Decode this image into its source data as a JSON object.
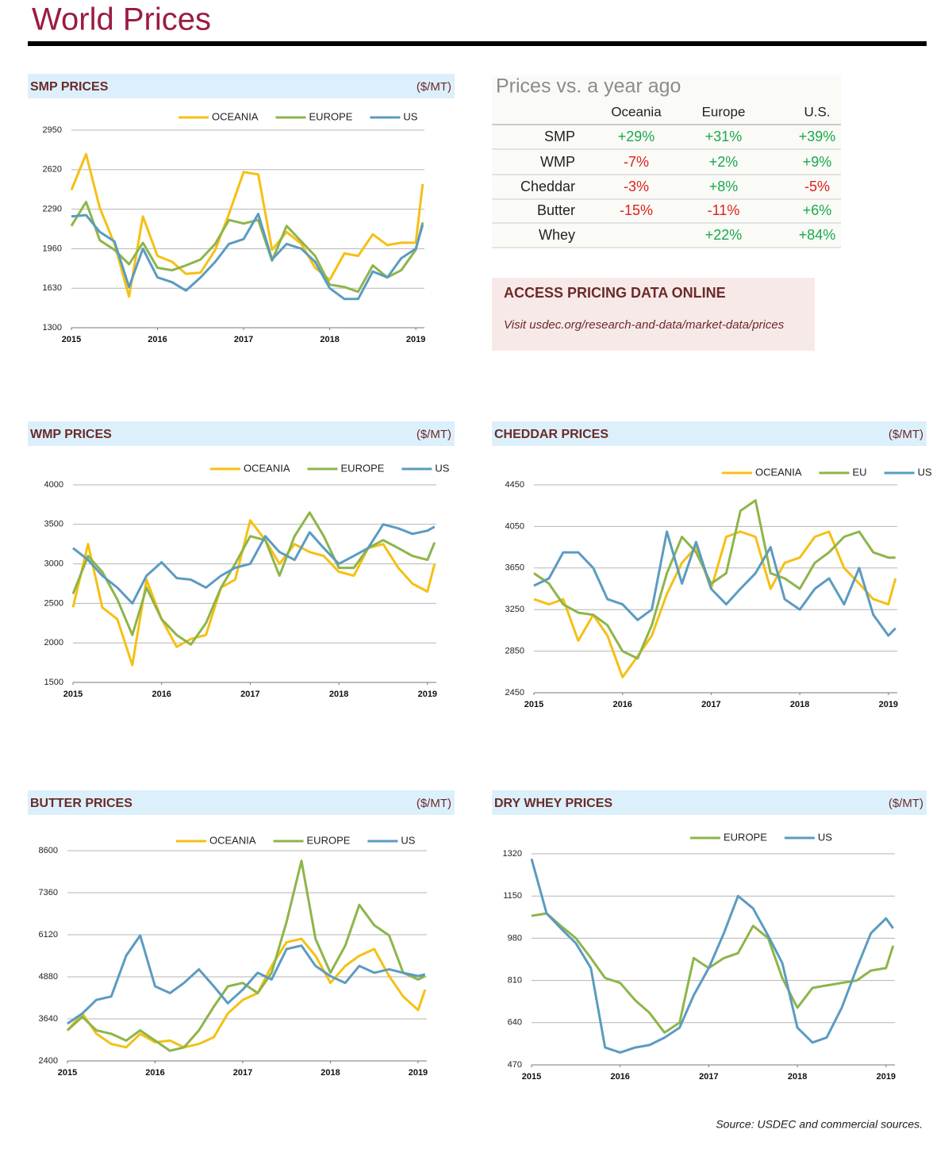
{
  "header": {
    "title": "World Prices"
  },
  "table": {
    "title": "Prices vs. a year ago",
    "columns": [
      "Oceania",
      "Europe",
      "U.S."
    ],
    "rows": [
      {
        "label": "SMP",
        "values": [
          "+29%",
          "+31%",
          "+39%"
        ]
      },
      {
        "label": "WMP",
        "values": [
          "-7%",
          "+2%",
          "+9%"
        ]
      },
      {
        "label": "Cheddar",
        "values": [
          "-3%",
          "+8%",
          "-5%"
        ]
      },
      {
        "label": "Butter",
        "values": [
          "-15%",
          "-11%",
          "+6%"
        ]
      },
      {
        "label": "Whey",
        "values": [
          null,
          "+22%",
          "+84%"
        ]
      }
    ]
  },
  "access": {
    "title": "ACCESS PRICING DATA ONLINE",
    "text": "Visit usdec.org/research-and-data/market-data/prices"
  },
  "source": "Source: USDEC and commercial sources.",
  "chart_data": [
    {
      "type": "line",
      "title": "SMP PRICES",
      "unit": "($/MT)",
      "x": [
        2015,
        2015.17,
        2015.33,
        2015.5,
        2015.67,
        2015.83,
        2016,
        2016.17,
        2016.33,
        2016.5,
        2016.67,
        2016.83,
        2017,
        2017.17,
        2017.33,
        2017.5,
        2017.67,
        2017.83,
        2018,
        2018.17,
        2018.33,
        2018.5,
        2018.67,
        2018.83,
        2019,
        2019.08
      ],
      "xlim": [
        2015,
        2019.1
      ],
      "xticks": [
        2015,
        2016,
        2017,
        2018,
        2019
      ],
      "ylim": [
        1300,
        2950
      ],
      "yticks": [
        1300,
        1630,
        1960,
        2290,
        2620,
        2950
      ],
      "grid": true,
      "series": [
        {
          "name": "OCEANIA",
          "color": "#f5c014",
          "values": [
            2450,
            2750,
            2300,
            2000,
            1560,
            2230,
            1900,
            1850,
            1750,
            1760,
            1950,
            2250,
            2600,
            2580,
            1950,
            2100,
            2000,
            1800,
            1700,
            1920,
            1900,
            2080,
            1990,
            2010,
            2010,
            2500
          ]
        },
        {
          "name": "EUROPE",
          "color": "#8db54a",
          "values": [
            2150,
            2350,
            2030,
            1950,
            1830,
            2010,
            1800,
            1780,
            1820,
            1870,
            2000,
            2200,
            2170,
            2200,
            1860,
            2150,
            2020,
            1900,
            1660,
            1640,
            1600,
            1820,
            1720,
            1780,
            1950,
            2180
          ]
        },
        {
          "name": "US",
          "color": "#5b9bc1",
          "values": [
            2230,
            2240,
            2100,
            2020,
            1640,
            1960,
            1720,
            1680,
            1610,
            1720,
            1850,
            2000,
            2040,
            2250,
            1870,
            2000,
            1960,
            1850,
            1630,
            1540,
            1540,
            1770,
            1720,
            1880,
            1960,
            2160
          ]
        }
      ]
    },
    {
      "type": "line",
      "title": "WMP PRICES",
      "unit": "($/MT)",
      "x": [
        2015,
        2015.17,
        2015.33,
        2015.5,
        2015.67,
        2015.83,
        2016,
        2016.17,
        2016.33,
        2016.5,
        2016.67,
        2016.83,
        2017,
        2017.17,
        2017.33,
        2017.5,
        2017.67,
        2017.83,
        2018,
        2018.17,
        2018.33,
        2018.5,
        2018.67,
        2018.83,
        2019,
        2019.08
      ],
      "xlim": [
        2015,
        2019.1
      ],
      "xticks": [
        2015,
        2016,
        2017,
        2018,
        2019
      ],
      "ylim": [
        1500,
        4000
      ],
      "yticks": [
        1500,
        2000,
        2500,
        3000,
        3500,
        4000
      ],
      "grid": true,
      "series": [
        {
          "name": "OCEANIA",
          "color": "#f5c014",
          "values": [
            2450,
            3250,
            2450,
            2300,
            1720,
            2800,
            2300,
            1950,
            2050,
            2100,
            2700,
            2800,
            3550,
            3300,
            3000,
            3250,
            3150,
            3100,
            2900,
            2850,
            3200,
            3250,
            2950,
            2750,
            2650,
            3000
          ]
        },
        {
          "name": "EUROPE",
          "color": "#8db54a",
          "values": [
            2620,
            3100,
            2900,
            2550,
            2100,
            2700,
            2300,
            2100,
            1980,
            2250,
            2700,
            3000,
            3350,
            3300,
            2850,
            3350,
            3650,
            3350,
            2950,
            2950,
            3200,
            3300,
            3200,
            3100,
            3050,
            3270
          ]
        },
        {
          "name": "US",
          "color": "#5b9bc1",
          "values": [
            3200,
            3050,
            2850,
            2700,
            2500,
            2850,
            3020,
            2820,
            2800,
            2700,
            2850,
            2950,
            3000,
            3350,
            3150,
            3050,
            3400,
            3200,
            3000,
            3100,
            3200,
            3500,
            3450,
            3380,
            3420,
            3470
          ]
        }
      ]
    },
    {
      "type": "line",
      "title": "CHEDDAR PRICES",
      "unit": "($/MT)",
      "x": [
        2015,
        2015.17,
        2015.33,
        2015.5,
        2015.67,
        2015.83,
        2016,
        2016.17,
        2016.33,
        2016.5,
        2016.67,
        2016.83,
        2017,
        2017.17,
        2017.33,
        2017.5,
        2017.67,
        2017.83,
        2018,
        2018.17,
        2018.33,
        2018.5,
        2018.67,
        2018.83,
        2019,
        2019.08
      ],
      "xlim": [
        2015,
        2019.1
      ],
      "xticks": [
        2015,
        2016,
        2017,
        2018,
        2019
      ],
      "ylim": [
        2450,
        4450
      ],
      "yticks": [
        2450,
        2850,
        3250,
        3650,
        4050,
        4450
      ],
      "grid": true,
      "series": [
        {
          "name": "OCEANIA",
          "color": "#f5c014",
          "values": [
            3350,
            3300,
            3350,
            2950,
            3200,
            3000,
            2600,
            2800,
            3000,
            3400,
            3700,
            3850,
            3450,
            3950,
            4000,
            3950,
            3450,
            3700,
            3750,
            3950,
            4000,
            3650,
            3500,
            3350,
            3300,
            3550
          ]
        },
        {
          "name": "EU",
          "color": "#8db54a",
          "values": [
            3600,
            3500,
            3300,
            3220,
            3200,
            3100,
            2850,
            2780,
            3100,
            3600,
            3950,
            3800,
            3500,
            3600,
            4200,
            4300,
            3600,
            3550,
            3450,
            3700,
            3800,
            3950,
            4000,
            3800,
            3750,
            3750
          ]
        },
        {
          "name": "US",
          "color": "#5b9bc1",
          "values": [
            3480,
            3550,
            3800,
            3800,
            3650,
            3350,
            3300,
            3150,
            3250,
            4000,
            3500,
            3900,
            3450,
            3300,
            3450,
            3600,
            3850,
            3350,
            3250,
            3450,
            3550,
            3300,
            3650,
            3200,
            3000,
            3070
          ]
        }
      ]
    },
    {
      "type": "line",
      "title": "BUTTER PRICES",
      "unit": "($/MT)",
      "x": [
        2015,
        2015.17,
        2015.33,
        2015.5,
        2015.67,
        2015.83,
        2016,
        2016.17,
        2016.33,
        2016.5,
        2016.67,
        2016.83,
        2017,
        2017.17,
        2017.33,
        2017.5,
        2017.67,
        2017.83,
        2018,
        2018.17,
        2018.33,
        2018.5,
        2018.67,
        2018.83,
        2019,
        2019.08
      ],
      "xlim": [
        2015,
        2019.1
      ],
      "xticks": [
        2015,
        2016,
        2017,
        2018,
        2019
      ],
      "ylim": [
        2400,
        8600
      ],
      "yticks": [
        2400,
        3640,
        4880,
        6120,
        7360,
        8600
      ],
      "grid": true,
      "series": [
        {
          "name": "OCEANIA",
          "color": "#f5c014",
          "values": [
            3300,
            3800,
            3200,
            2900,
            2800,
            3200,
            2950,
            3000,
            2800,
            2900,
            3100,
            3800,
            4200,
            4400,
            5200,
            5900,
            6000,
            5500,
            4700,
            5200,
            5500,
            5700,
            4900,
            4300,
            3900,
            4500
          ]
        },
        {
          "name": "EUROPE",
          "color": "#8db54a",
          "values": [
            3300,
            3700,
            3300,
            3200,
            3000,
            3300,
            3000,
            2700,
            2800,
            3300,
            4000,
            4600,
            4700,
            4400,
            5000,
            6500,
            8300,
            6000,
            5000,
            5800,
            7000,
            6400,
            6100,
            5000,
            4800,
            4900
          ]
        },
        {
          "name": "US",
          "color": "#5b9bc1",
          "values": [
            3500,
            3800,
            4200,
            4300,
            5500,
            6100,
            4600,
            4400,
            4700,
            5100,
            4600,
            4100,
            4500,
            5000,
            4800,
            5700,
            5800,
            5200,
            4900,
            4700,
            5200,
            5000,
            5100,
            5000,
            4900,
            4950
          ]
        }
      ]
    },
    {
      "type": "line",
      "title": "DRY WHEY PRICES",
      "unit": "($/MT)",
      "x": [
        2015,
        2015.17,
        2015.33,
        2015.5,
        2015.67,
        2015.83,
        2016,
        2016.17,
        2016.33,
        2016.5,
        2016.67,
        2016.83,
        2017,
        2017.17,
        2017.33,
        2017.5,
        2017.67,
        2017.83,
        2018,
        2018.17,
        2018.33,
        2018.5,
        2018.67,
        2018.83,
        2019,
        2019.08
      ],
      "xlim": [
        2015,
        2019.1
      ],
      "xticks": [
        2015,
        2016,
        2017,
        2018,
        2019
      ],
      "ylim": [
        470,
        1320
      ],
      "yticks": [
        470,
        640,
        810,
        980,
        1150,
        1320
      ],
      "grid": true,
      "series": [
        {
          "name": "EUROPE",
          "color": "#8db54a",
          "values": [
            1070,
            1080,
            1030,
            980,
            900,
            820,
            800,
            730,
            680,
            600,
            640,
            900,
            860,
            900,
            920,
            1030,
            980,
            820,
            700,
            780,
            790,
            800,
            810,
            850,
            860,
            950
          ]
        },
        {
          "name": "US",
          "color": "#5b9bc1",
          "values": [
            1300,
            1080,
            1020,
            960,
            860,
            540,
            520,
            540,
            550,
            580,
            620,
            750,
            860,
            1000,
            1150,
            1100,
            990,
            880,
            620,
            560,
            580,
            700,
            860,
            1000,
            1060,
            1020
          ]
        }
      ]
    }
  ]
}
